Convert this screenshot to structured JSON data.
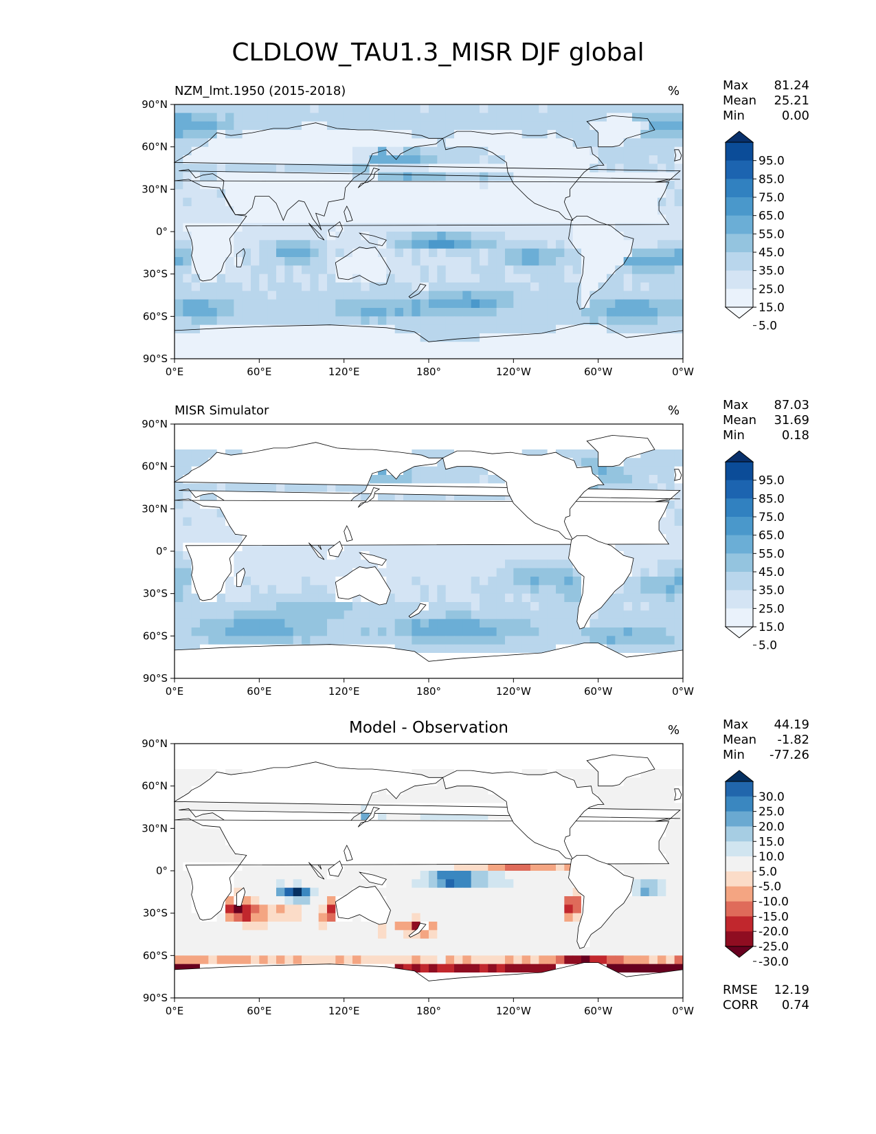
{
  "figure": {
    "title": "CLDLOW_TAU1.3_MISR DJF global",
    "unit": "%"
  },
  "chart_data": [
    {
      "type": "heatmap",
      "title": "NZM_lmt.1950 (2015-2018)",
      "unit": "%",
      "x_ticks": [
        "0°E",
        "60°E",
        "120°E",
        "180°",
        "120°W",
        "60°W",
        "0°W"
      ],
      "y_ticks": [
        "90°N",
        "60°N",
        "30°N",
        "0°",
        "30°S",
        "60°S",
        "90°S"
      ],
      "stats": [
        {
          "label": "Max",
          "value": "81.24"
        },
        {
          "label": "Mean",
          "value": "25.21"
        },
        {
          "label": "Min",
          "value": "0.00"
        }
      ],
      "colorbar": {
        "labels": [
          "95.0",
          "85.0",
          "75.0",
          "65.0",
          "55.0",
          "45.0",
          "35.0",
          "25.0",
          "15.0",
          "5.0"
        ],
        "colors": [
          "#08306b",
          "#0b4c98",
          "#1c64b0",
          "#3181c0",
          "#4a98cb",
          "#6baed6",
          "#94c4df",
          "#b9d6ec",
          "#d4e4f4",
          "#eaf2fb",
          "#f7fbff"
        ]
      },
      "field": "model"
    },
    {
      "type": "heatmap",
      "title": "MISR Simulator",
      "unit": "%",
      "x_ticks": [
        "0°E",
        "60°E",
        "120°E",
        "180°",
        "120°W",
        "60°W",
        "0°W"
      ],
      "y_ticks": [
        "90°N",
        "60°N",
        "30°N",
        "0°",
        "30°S",
        "60°S",
        "90°S"
      ],
      "stats": [
        {
          "label": "Max",
          "value": "87.03"
        },
        {
          "label": "Mean",
          "value": "31.69"
        },
        {
          "label": "Min",
          "value": "0.18"
        }
      ],
      "colorbar": {
        "labels": [
          "95.0",
          "85.0",
          "75.0",
          "65.0",
          "55.0",
          "45.0",
          "35.0",
          "25.0",
          "15.0",
          "5.0"
        ],
        "colors": [
          "#08306b",
          "#0b4c98",
          "#1c64b0",
          "#3181c0",
          "#4a98cb",
          "#6baed6",
          "#94c4df",
          "#b9d6ec",
          "#d4e4f4",
          "#eaf2fb",
          "#f7fbff"
        ]
      },
      "field": "obs"
    },
    {
      "type": "heatmap",
      "title": "Model - Observation",
      "unit": "%",
      "x_ticks": [
        "0°E",
        "60°E",
        "120°E",
        "180°",
        "120°W",
        "60°W",
        "0°W"
      ],
      "y_ticks": [
        "90°N",
        "60°N",
        "30°N",
        "0°",
        "30°S",
        "60°S",
        "90°S"
      ],
      "stats": [
        {
          "label": "Max",
          "value": "44.19"
        },
        {
          "label": "Mean",
          "value": "-1.82"
        },
        {
          "label": "Min",
          "value": "-77.26"
        }
      ],
      "extra_stats": [
        {
          "label": "RMSE",
          "value": "12.19"
        },
        {
          "label": "CORR",
          "value": "0.74"
        }
      ],
      "colorbar": {
        "labels": [
          "30.0",
          "25.0",
          "20.0",
          "15.0",
          "10.0",
          "5.0",
          "-5.0",
          "-10.0",
          "-15.0",
          "-20.0",
          "-25.0",
          "-30.0"
        ],
        "colors": [
          "#053061",
          "#2166ac",
          "#3a87c0",
          "#6aa9d1",
          "#a6cde3",
          "#d1e5f0",
          "#f2f2f2",
          "#fbdcc8",
          "#f4a582",
          "#df6b5a",
          "#c1272d",
          "#8f0d21",
          "#67001f"
        ]
      },
      "field": "diff"
    }
  ]
}
